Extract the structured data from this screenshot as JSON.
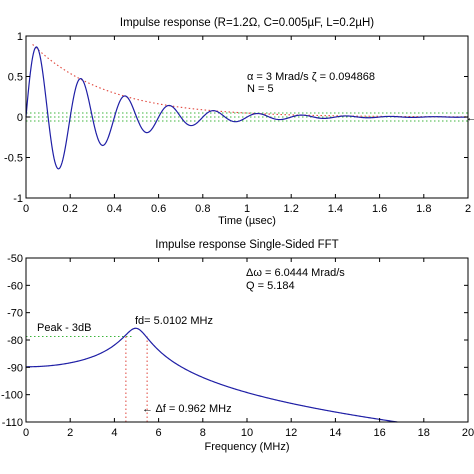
{
  "chart_data": [
    {
      "type": "line",
      "title": "Impulse response (R=1.2Ω, C=0.005µF, L=0.2µH)",
      "xlabel": "Time (µsec)",
      "ylabel": "",
      "xlim": [
        0,
        2
      ],
      "ylim": [
        -1,
        1
      ],
      "x_ticks": [
        "0",
        "0.2",
        "0.4",
        "0.6",
        "0.8",
        "1",
        "1.2",
        "1.4",
        "1.6",
        "1.8",
        "2"
      ],
      "y_ticks": [
        "-1",
        "-0.5",
        "0",
        "0.5",
        "1"
      ],
      "grid": false,
      "annotations": [
        {
          "text": "α = 3 Mrad/s   ζ = 0.094868",
          "x": 0.85,
          "y": 0.82
        },
        {
          "text": "N = 5",
          "x": 0.85,
          "y": 0.68
        }
      ],
      "series": [
        {
          "style": "solid",
          "color": "#1f1fa6",
          "formula": "exp(-3t)·sin(31.4t)",
          "alpha": 3,
          "omega_d": 31.4,
          "t_range": [
            0,
            2
          ],
          "samples": 600
        },
        {
          "style": "dotted",
          "color": "#e0463c",
          "formula": "exp(-3t)",
          "t_range": [
            0.03,
            2
          ],
          "samples": 150
        },
        {
          "style": "dotted",
          "color": "#3cb43c",
          "formula": "y = 0.05",
          "y": 0.05
        },
        {
          "style": "dotted",
          "color": "#3cb43c",
          "formula": "y = -0.05",
          "y": -0.05
        }
      ]
    },
    {
      "type": "line",
      "title": "Impulse response Single-Sided FFT",
      "xlabel": "Frequency (MHz)",
      "ylabel": "",
      "xlim": [
        0,
        20
      ],
      "ylim": [
        -110,
        -50
      ],
      "x_ticks": [
        "0",
        "2",
        "4",
        "6",
        "8",
        "10",
        "12",
        "14",
        "16",
        "18",
        "20"
      ],
      "y_ticks": [
        "-110",
        "-100",
        "-90",
        "-80",
        "-70",
        "-60",
        "-50"
      ],
      "grid": false,
      "annotations": [
        {
          "text": "Δω = 6.0444 Mrad/s",
          "x": 10.3,
          "y": -52.5
        },
        {
          "text": "Q = 5.184",
          "x": 10.3,
          "y": -56.5
        },
        {
          "text": "fd= 5.0102 MHz",
          "x": 4.8,
          "y": -73
        },
        {
          "text": "Peak - 3dB",
          "x": 0.5,
          "y": -77
        },
        {
          "text": "← Δf = 0.962 MHz",
          "x": 5.2,
          "y": -104.5
        }
      ],
      "series": [
        {
          "style": "solid",
          "color": "#1f1fa6",
          "formula": "20·log10(|H(f)|)",
          "peak_freq": 5.0102,
          "peak_db": -75.7,
          "dc_db": -89.8,
          "end": [
            16.8,
            -110
          ],
          "f_range": [
            0,
            16.8
          ]
        },
        {
          "style": "dotted",
          "color": "#3cb43c",
          "formula": "y = -78.7 (peak - 3dB)",
          "y": -78.7,
          "x_range": [
            0,
            4.8
          ]
        },
        {
          "style": "dotted",
          "color": "#e0463c",
          "formula": "x = 4.52",
          "x": 4.52
        },
        {
          "style": "dotted",
          "color": "#e0463c",
          "formula": "x = 5.48",
          "x": 5.48
        }
      ]
    }
  ]
}
